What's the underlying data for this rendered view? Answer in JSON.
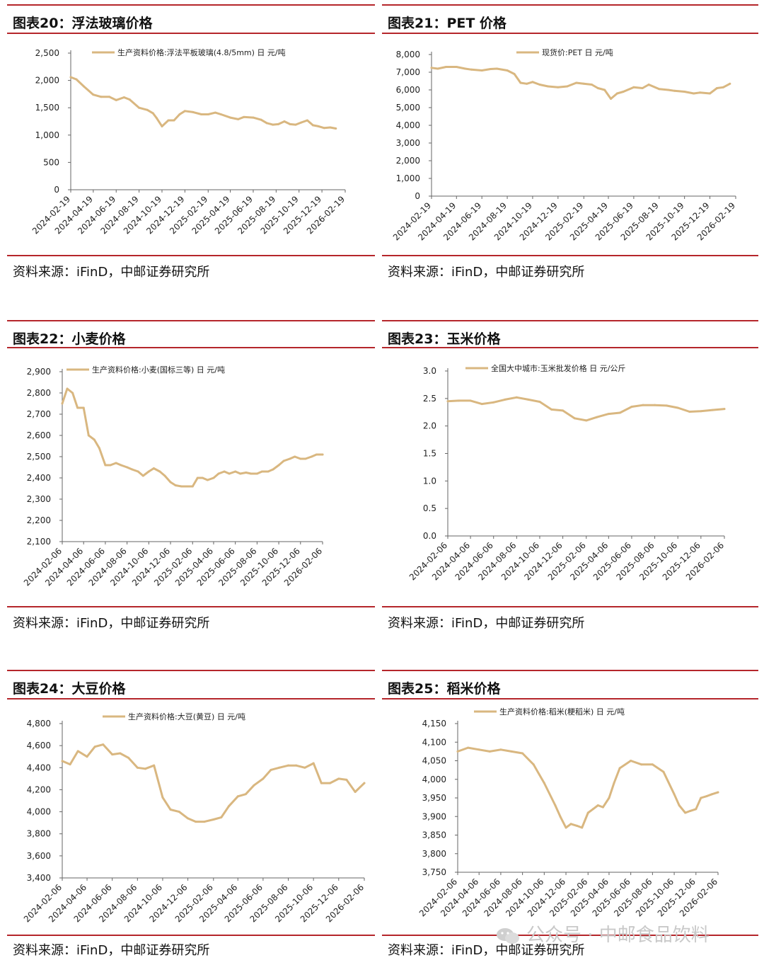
{
  "colors": {
    "line": "#d9b780",
    "rule": "#b5262b",
    "axis": "#666666"
  },
  "panels": [
    {
      "id": "p20",
      "title": "图表20：浮法玻璃价格",
      "source": "资料来源：iFinD，中邮证券研究所",
      "chart_data": {
        "type": "line",
        "series": [
          {
            "name": "生产资料价格:浮法平板玻璃(4.8/5mm)  日  元/吨",
            "x": [
              "2024-02-19",
              "2024-03-05",
              "2024-03-25",
              "2024-04-19",
              "2024-05-10",
              "2024-06-01",
              "2024-06-19",
              "2024-07-10",
              "2024-07-25",
              "2024-08-19",
              "2024-09-10",
              "2024-09-25",
              "2024-10-05",
              "2024-10-19",
              "2024-11-05",
              "2024-11-20",
              "2024-12-05",
              "2024-12-19",
              "2025-01-10",
              "2025-02-01",
              "2025-02-19",
              "2025-03-10",
              "2025-03-25",
              "2025-04-19",
              "2025-05-10",
              "2025-05-25",
              "2025-06-19",
              "2025-07-10",
              "2025-07-25",
              "2025-08-10",
              "2025-08-25",
              "2025-09-10",
              "2025-09-25",
              "2025-10-10",
              "2025-10-25",
              "2025-11-10",
              "2025-11-25",
              "2025-12-10",
              "2025-12-25",
              "2026-01-10",
              "2026-01-25"
            ],
            "values": [
              2060,
              2020,
              1890,
              1740,
              1700,
              1700,
              1640,
              1690,
              1650,
              1500,
              1460,
              1400,
              1310,
              1160,
              1270,
              1270,
              1380,
              1440,
              1420,
              1380,
              1380,
              1410,
              1380,
              1320,
              1290,
              1330,
              1320,
              1280,
              1220,
              1190,
              1200,
              1250,
              1200,
              1190,
              1230,
              1270,
              1180,
              1160,
              1130,
              1140,
              1120
            ]
          }
        ],
        "x_ticks": [
          "2024-02-19",
          "2024-04-19",
          "2024-06-19",
          "2024-08-19",
          "2024-10-19",
          "2024-12-19",
          "2025-02-19",
          "2025-04-19",
          "2025-06-19",
          "2025-08-19",
          "2025-10-19",
          "2025-12-19",
          "2026-02-19"
        ],
        "y_ticks": [
          "2,500",
          "2,000",
          "1,500",
          "1,000",
          "500",
          "0"
        ],
        "ylim": [
          0,
          2500
        ]
      }
    },
    {
      "id": "p21",
      "title": "图表21：PET 价格",
      "source": "资料来源：iFinD，中邮证券研究所",
      "chart_data": {
        "type": "line",
        "series": [
          {
            "name": "现货价:PET  日  元/吨",
            "x": [
              "2024-02-19",
              "2024-03-05",
              "2024-03-25",
              "2024-04-19",
              "2024-05-10",
              "2024-05-25",
              "2024-06-19",
              "2024-07-10",
              "2024-07-25",
              "2024-08-19",
              "2024-09-05",
              "2024-09-20",
              "2024-10-05",
              "2024-10-19",
              "2024-11-05",
              "2024-11-25",
              "2024-12-19",
              "2025-01-10",
              "2025-02-01",
              "2025-02-19",
              "2025-03-10",
              "2025-03-25",
              "2025-04-10",
              "2025-04-25",
              "2025-05-10",
              "2025-05-25",
              "2025-06-19",
              "2025-07-10",
              "2025-07-25",
              "2025-08-19",
              "2025-09-10",
              "2025-09-25",
              "2025-10-19",
              "2025-11-10",
              "2025-11-25",
              "2025-12-19",
              "2026-01-05",
              "2026-01-20",
              "2026-02-05"
            ],
            "values": [
              7250,
              7200,
              7300,
              7300,
              7200,
              7150,
              7100,
              7180,
              7200,
              7100,
              6900,
              6400,
              6350,
              6450,
              6300,
              6200,
              6150,
              6200,
              6400,
              6350,
              6300,
              6100,
              6000,
              5500,
              5800,
              5900,
              6150,
              6100,
              6300,
              6050,
              6000,
              5950,
              5900,
              5800,
              5850,
              5800,
              6100,
              6150,
              6350
            ]
          }
        ],
        "x_ticks": [
          "2024-02-19",
          "2024-04-19",
          "2024-06-19",
          "2024-08-19",
          "2024-10-19",
          "2024-12-19",
          "2025-02-19",
          "2025-04-19",
          "2025-06-19",
          "2025-08-19",
          "2025-10-19",
          "2025-12-19",
          "2026-02-19"
        ],
        "y_ticks": [
          "8,000",
          "7,000",
          "6,000",
          "5,000",
          "4,000",
          "3,000",
          "2,000",
          "1,000",
          "0"
        ],
        "ylim": [
          0,
          8000
        ]
      }
    },
    {
      "id": "p22",
      "title": "图表22：小麦价格",
      "source": "资料来源：iFinD，中邮证券研究所",
      "chart_data": {
        "type": "line",
        "series": [
          {
            "name": "生产资料价格:小麦(国标三等)  日  元/吨",
            "x": [
              "2024-02-06",
              "2024-02-20",
              "2024-03-06",
              "2024-03-20",
              "2024-04-06",
              "2024-04-20",
              "2024-05-06",
              "2024-05-20",
              "2024-06-06",
              "2024-06-20",
              "2024-07-06",
              "2024-07-20",
              "2024-08-06",
              "2024-08-20",
              "2024-09-06",
              "2024-09-20",
              "2024-10-06",
              "2024-10-20",
              "2024-11-06",
              "2024-11-20",
              "2024-12-06",
              "2024-12-20",
              "2025-01-06",
              "2025-01-20",
              "2025-02-06",
              "2025-02-20",
              "2025-03-06",
              "2025-03-20",
              "2025-04-06",
              "2025-04-20",
              "2025-05-06",
              "2025-05-20",
              "2025-06-06",
              "2025-06-20",
              "2025-07-06",
              "2025-07-20",
              "2025-08-06",
              "2025-08-20",
              "2025-09-06",
              "2025-09-20",
              "2025-10-06",
              "2025-10-20",
              "2025-11-06",
              "2025-11-20",
              "2025-12-06",
              "2025-12-20",
              "2026-01-06",
              "2026-01-20",
              "2026-02-06"
            ],
            "values": [
              2750,
              2820,
              2800,
              2730,
              2730,
              2600,
              2580,
              2540,
              2460,
              2460,
              2470,
              2460,
              2450,
              2440,
              2430,
              2410,
              2430,
              2445,
              2430,
              2410,
              2380,
              2365,
              2360,
              2360,
              2360,
              2400,
              2400,
              2390,
              2400,
              2420,
              2430,
              2420,
              2430,
              2420,
              2425,
              2420,
              2420,
              2430,
              2430,
              2440,
              2460,
              2480,
              2490,
              2500,
              2490,
              2490,
              2500,
              2510,
              2510
            ]
          }
        ],
        "x_ticks": [
          "2024-02-06",
          "2024-04-06",
          "2024-06-06",
          "2024-08-06",
          "2024-10-06",
          "2024-12-06",
          "2025-02-06",
          "2025-04-06",
          "2025-06-06",
          "2025-08-06",
          "2025-10-06",
          "2025-12-06",
          "2026-02-06"
        ],
        "y_ticks": [
          "2,900",
          "2,800",
          "2,700",
          "2,600",
          "2,500",
          "2,400",
          "2,300",
          "2,200",
          "2,100"
        ],
        "ylim": [
          2100,
          2900
        ]
      }
    },
    {
      "id": "p23",
      "title": "图表23：玉米价格",
      "source": "资料来源：iFinD，中邮证券研究所",
      "chart_data": {
        "type": "line",
        "series": [
          {
            "name": "全国大中城市:玉米批发价格  日  元/公斤",
            "x": [
              "2024-02-06",
              "2024-03-06",
              "2024-04-06",
              "2024-05-06",
              "2024-06-06",
              "2024-07-06",
              "2024-08-06",
              "2024-09-06",
              "2024-10-06",
              "2024-11-06",
              "2024-12-06",
              "2025-01-06",
              "2025-02-06",
              "2025-03-06",
              "2025-04-06",
              "2025-05-06",
              "2025-06-06",
              "2025-07-06",
              "2025-08-06",
              "2025-09-06",
              "2025-10-06",
              "2025-11-06",
              "2025-12-06",
              "2026-01-06",
              "2026-02-06"
            ],
            "values": [
              2.45,
              2.46,
              2.46,
              2.4,
              2.43,
              2.48,
              2.52,
              2.48,
              2.44,
              2.3,
              2.28,
              2.14,
              2.1,
              2.16,
              2.22,
              2.24,
              2.35,
              2.38,
              2.38,
              2.37,
              2.33,
              2.26,
              2.27,
              2.29,
              2.31
            ]
          }
        ],
        "x_ticks": [
          "2024-02-06",
          "2024-04-06",
          "2024-06-06",
          "2024-08-06",
          "2024-10-06",
          "2024-12-06",
          "2025-02-06",
          "2025-04-06",
          "2025-06-06",
          "2025-08-06",
          "2025-10-06",
          "2025-12-06",
          "2026-02-06"
        ],
        "y_ticks": [
          "3.0",
          "2.5",
          "2.0",
          "1.5",
          "1.0",
          "0.5",
          "0.0"
        ],
        "ylim": [
          0,
          3
        ]
      }
    },
    {
      "id": "p24",
      "title": "图表24：大豆价格",
      "source": "资料来源：iFinD，中邮证券研究所",
      "chart_data": {
        "type": "line",
        "series": [
          {
            "name": "生产资料价格:大豆(黄豆)  日  元/吨",
            "x": [
              "2024-02-06",
              "2024-02-25",
              "2024-03-15",
              "2024-04-06",
              "2024-04-25",
              "2024-05-15",
              "2024-06-06",
              "2024-06-25",
              "2024-07-15",
              "2024-08-06",
              "2024-08-25",
              "2024-09-15",
              "2024-10-06",
              "2024-10-25",
              "2024-11-15",
              "2024-12-06",
              "2024-12-25",
              "2025-01-15",
              "2025-02-06",
              "2025-02-25",
              "2025-03-15",
              "2025-04-06",
              "2025-04-25",
              "2025-05-15",
              "2025-06-06",
              "2025-06-25",
              "2025-07-15",
              "2025-08-06",
              "2025-08-25",
              "2025-09-15",
              "2025-10-06",
              "2025-10-25",
              "2025-11-15",
              "2025-12-06",
              "2025-12-25",
              "2026-01-15",
              "2026-02-06"
            ],
            "values": [
              4460,
              4430,
              4550,
              4500,
              4590,
              4610,
              4520,
              4530,
              4490,
              4400,
              4390,
              4420,
              4130,
              4020,
              4000,
              3940,
              3910,
              3910,
              3930,
              3950,
              4050,
              4140,
              4160,
              4240,
              4300,
              4380,
              4400,
              4420,
              4420,
              4400,
              4440,
              4260,
              4260,
              4300,
              4290,
              4180,
              4260
            ]
          }
        ],
        "x_ticks": [
          "2024-02-06",
          "2024-04-06",
          "2024-06-06",
          "2024-08-06",
          "2024-10-06",
          "2024-12-06",
          "2025-02-06",
          "2025-04-06",
          "2025-06-06",
          "2025-08-06",
          "2025-10-06",
          "2025-12-06",
          "2026-02-06"
        ],
        "y_ticks": [
          "4,800",
          "4,600",
          "4,400",
          "4,200",
          "4,000",
          "3,800",
          "3,600",
          "3,400"
        ],
        "ylim": [
          3400,
          4800
        ]
      }
    },
    {
      "id": "p25",
      "title": "图表25：稻米价格",
      "source": "资料来源：iFinD，中邮证券研究所",
      "chart_data": {
        "type": "line",
        "series": [
          {
            "name": "生产资料价格:稻米(粳稻米)  日  元/吨",
            "x": [
              "2024-02-06",
              "2024-03-06",
              "2024-04-06",
              "2024-05-06",
              "2024-06-06",
              "2024-07-06",
              "2024-08-06",
              "2024-09-06",
              "2024-10-06",
              "2024-11-06",
              "2024-11-20",
              "2024-12-06",
              "2024-12-20",
              "2025-01-06",
              "2025-01-20",
              "2025-02-06",
              "2025-02-20",
              "2025-03-06",
              "2025-03-20",
              "2025-04-06",
              "2025-04-20",
              "2025-05-06",
              "2025-06-06",
              "2025-07-06",
              "2025-08-06",
              "2025-09-06",
              "2025-10-06",
              "2025-10-20",
              "2025-11-06",
              "2025-11-20",
              "2025-12-06",
              "2025-12-20",
              "2026-01-06",
              "2026-01-20",
              "2026-02-06"
            ],
            "values": [
              4075,
              4085,
              4080,
              4075,
              4080,
              4075,
              4070,
              4040,
              3990,
              3930,
              3900,
              3870,
              3880,
              3875,
              3870,
              3910,
              3920,
              3930,
              3925,
              3950,
              3990,
              4030,
              4050,
              4040,
              4040,
              4020,
              3960,
              3930,
              3910,
              3915,
              3920,
              3950,
              3955,
              3960,
              3965
            ]
          }
        ],
        "x_ticks": [
          "2024-02-06",
          "2024-04-06",
          "2024-06-06",
          "2024-08-06",
          "2024-10-06",
          "2024-12-06",
          "2025-02-06",
          "2025-04-06",
          "2025-06-06",
          "2025-08-06",
          "2025-10-06",
          "2025-12-06",
          "2026-02-06"
        ],
        "y_ticks": [
          "4,150",
          "4,100",
          "4,050",
          "4,000",
          "3,950",
          "3,900",
          "3,850",
          "3,800",
          "3,750"
        ],
        "ylim": [
          3750,
          4150
        ]
      }
    }
  ],
  "watermark": {
    "text": "公众号 · 中邮食品饮料",
    "icon": "wechat-icon"
  }
}
